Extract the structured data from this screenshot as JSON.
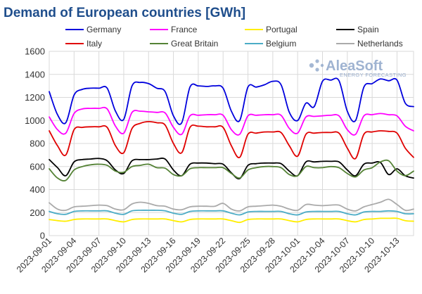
{
  "chart_data": {
    "type": "line",
    "title": "Demand of European countries [GWh]",
    "xlabel": "",
    "ylabel": "",
    "ylim": [
      0,
      1600
    ],
    "yticks": [
      0,
      200,
      400,
      600,
      800,
      1000,
      1200,
      1400,
      1600
    ],
    "grid": "both",
    "legend_position": "top",
    "x_start": "2023-09-01",
    "x_end": "2023-10-15",
    "xtick_labels": [
      "2023-09-01",
      "2023-09-04",
      "2023-09-07",
      "2023-09-10",
      "2023-09-13",
      "2023-09-16",
      "2023-09-19",
      "2023-09-22",
      "2023-09-25",
      "2023-09-28",
      "2023-10-01",
      "2023-10-04",
      "2023-10-07",
      "2023-10-10",
      "2023-10-13"
    ],
    "x": [
      "2023-09-01",
      "2023-09-02",
      "2023-09-03",
      "2023-09-04",
      "2023-09-05",
      "2023-09-06",
      "2023-09-07",
      "2023-09-08",
      "2023-09-09",
      "2023-09-10",
      "2023-09-11",
      "2023-09-12",
      "2023-09-13",
      "2023-09-14",
      "2023-09-15",
      "2023-09-16",
      "2023-09-17",
      "2023-09-18",
      "2023-09-19",
      "2023-09-20",
      "2023-09-21",
      "2023-09-22",
      "2023-09-23",
      "2023-09-24",
      "2023-09-25",
      "2023-09-26",
      "2023-09-27",
      "2023-09-28",
      "2023-09-29",
      "2023-09-30",
      "2023-10-01",
      "2023-10-02",
      "2023-10-03",
      "2023-10-04",
      "2023-10-05",
      "2023-10-06",
      "2023-10-07",
      "2023-10-08",
      "2023-10-09",
      "2023-10-10",
      "2023-10-11",
      "2023-10-12",
      "2023-10-13",
      "2023-10-14",
      "2023-10-15"
    ],
    "series": [
      {
        "name": "Germany",
        "color": "#0000dd",
        "values": [
          1250,
          1050,
          980,
          1220,
          1270,
          1280,
          1280,
          1280,
          1080,
          1010,
          1300,
          1330,
          1320,
          1280,
          1250,
          1040,
          980,
          1290,
          1300,
          1295,
          1300,
          1280,
          1080,
          1000,
          1290,
          1290,
          1310,
          1340,
          1310,
          1070,
          1000,
          1150,
          1120,
          1340,
          1350,
          1345,
          1080,
          1000,
          1290,
          1320,
          1360,
          1345,
          1350,
          1150,
          1120
        ]
      },
      {
        "name": "France",
        "color": "#ff00ff",
        "values": [
          1030,
          920,
          890,
          1060,
          1100,
          1105,
          1105,
          1100,
          950,
          890,
          1070,
          1080,
          1075,
          1070,
          1065,
          940,
          880,
          1040,
          1045,
          1050,
          1050,
          1045,
          920,
          880,
          1040,
          1045,
          1050,
          1050,
          1045,
          930,
          890,
          1030,
          1035,
          1040,
          1045,
          1040,
          920,
          880,
          1040,
          1050,
          1060,
          1050,
          1040,
          950,
          910
        ]
      },
      {
        "name": "Portugal",
        "color": "#ffee00",
        "values": [
          140,
          130,
          125,
          140,
          145,
          145,
          145,
          145,
          130,
          120,
          140,
          145,
          145,
          145,
          145,
          130,
          120,
          140,
          145,
          145,
          145,
          145,
          130,
          115,
          140,
          145,
          145,
          145,
          145,
          130,
          120,
          140,
          145,
          145,
          145,
          145,
          130,
          120,
          140,
          145,
          150,
          150,
          150,
          130,
          125
        ]
      },
      {
        "name": "Spain",
        "color": "#000000",
        "values": [
          660,
          590,
          520,
          640,
          660,
          665,
          670,
          650,
          570,
          540,
          650,
          660,
          660,
          665,
          665,
          570,
          520,
          620,
          630,
          630,
          625,
          620,
          545,
          495,
          610,
          625,
          630,
          630,
          625,
          560,
          520,
          640,
          640,
          645,
          645,
          640,
          570,
          520,
          620,
          630,
          635,
          530,
          580,
          520,
          500
        ]
      },
      {
        "name": "Italy",
        "color": "#e00000",
        "values": [
          910,
          780,
          700,
          920,
          940,
          945,
          945,
          940,
          780,
          720,
          930,
          975,
          990,
          980,
          960,
          800,
          720,
          940,
          950,
          945,
          945,
          940,
          780,
          680,
          880,
          890,
          900,
          900,
          895,
          780,
          690,
          880,
          890,
          895,
          895,
          890,
          760,
          670,
          880,
          900,
          910,
          905,
          890,
          760,
          680
        ]
      },
      {
        "name": "Great Britain",
        "color": "#548235",
        "values": [
          580,
          500,
          480,
          570,
          600,
          615,
          620,
          610,
          560,
          550,
          600,
          610,
          620,
          590,
          585,
          530,
          520,
          580,
          590,
          590,
          590,
          590,
          540,
          500,
          570,
          590,
          600,
          600,
          590,
          530,
          520,
          600,
          590,
          590,
          600,
          590,
          540,
          510,
          570,
          590,
          640,
          650,
          560,
          520,
          560
        ]
      },
      {
        "name": "Belgium",
        "color": "#4bacc6",
        "values": [
          210,
          190,
          185,
          210,
          215,
          215,
          215,
          215,
          195,
          185,
          215,
          220,
          220,
          220,
          215,
          195,
          185,
          210,
          215,
          215,
          215,
          215,
          195,
          180,
          205,
          210,
          210,
          210,
          210,
          190,
          180,
          205,
          210,
          210,
          210,
          210,
          190,
          180,
          205,
          210,
          210,
          215,
          210,
          190,
          190
        ]
      },
      {
        "name": "Netherlands",
        "color": "#aaaaaa",
        "values": [
          285,
          230,
          220,
          250,
          255,
          260,
          265,
          260,
          230,
          225,
          275,
          290,
          280,
          260,
          255,
          230,
          225,
          250,
          255,
          255,
          255,
          280,
          230,
          215,
          250,
          255,
          260,
          265,
          255,
          230,
          220,
          270,
          265,
          260,
          265,
          265,
          230,
          215,
          250,
          270,
          290,
          315,
          270,
          220,
          230
        ]
      }
    ]
  },
  "logo": {
    "main": "AleaSoft",
    "sub": "ENERGY FORECASTING"
  }
}
